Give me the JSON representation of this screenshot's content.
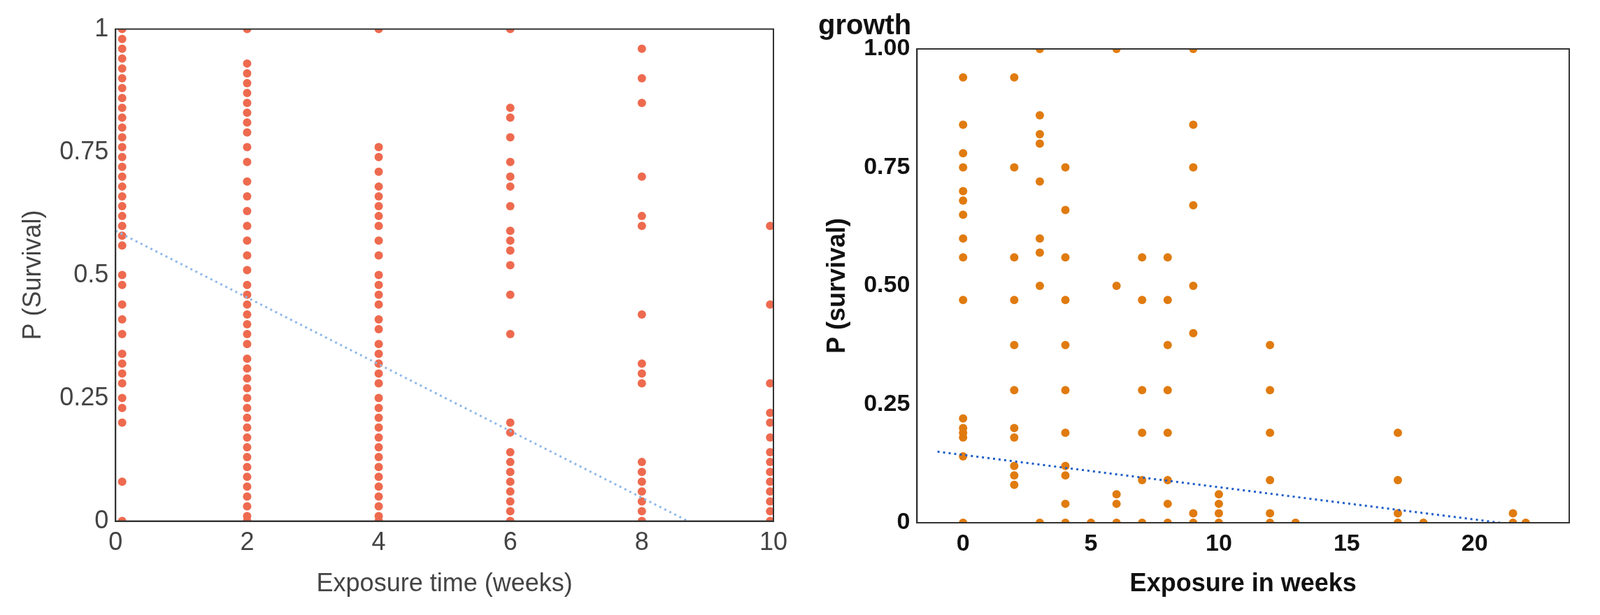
{
  "chart_data": [
    {
      "type": "scatter",
      "x_label": "Exposure time (weeks)",
      "y_label": "P (Survival)",
      "xlim": [
        0,
        10
      ],
      "xticks": [
        0,
        2,
        4,
        6,
        8,
        10
      ],
      "ylim": [
        0,
        1
      ],
      "yticks": [
        0,
        0.25,
        0.5,
        0.75,
        1
      ],
      "grid": false,
      "series": [
        {
          "type": "scatter",
          "color": "#ee6a4f",
          "marker": "circle",
          "x": [
            0.1,
            0.1,
            0.1,
            0.1,
            0.1,
            0.1,
            0.1,
            0.1,
            0.1,
            0.1,
            0.1,
            0.1,
            0.1,
            0.1,
            0.1,
            0.1,
            0.1,
            0.1,
            0.1,
            0.1,
            0.1,
            0.1,
            0.1,
            0.1,
            0.1,
            0.1,
            0.1,
            0.1,
            0.1,
            0.1,
            0.1,
            0.1,
            0.1,
            0.1,
            0.1,
            0.1,
            0.1,
            2,
            2,
            2,
            2,
            2,
            2,
            2,
            2,
            2,
            2,
            2,
            2,
            2,
            2,
            2,
            2,
            2,
            2,
            2,
            2,
            2,
            2,
            2,
            2,
            2,
            2,
            2,
            2,
            2,
            2,
            2,
            2,
            2,
            2,
            2,
            2,
            2,
            2,
            2,
            2,
            2,
            2,
            2,
            4,
            4,
            4,
            4,
            4,
            4,
            4,
            4,
            4,
            4,
            4,
            4,
            4,
            4,
            4,
            4,
            4,
            4,
            4,
            4,
            4,
            4,
            4,
            4,
            4,
            4,
            4,
            4,
            4,
            4,
            4,
            4,
            4,
            4,
            4,
            4,
            6,
            6,
            6,
            6,
            6,
            6,
            6,
            6,
            6,
            6,
            6,
            6,
            6,
            6,
            6,
            6,
            6,
            6,
            6,
            6,
            6,
            6,
            6,
            6,
            8,
            8,
            8,
            8,
            8,
            8,
            8,
            8,
            8,
            8,
            8,
            8,
            8,
            8,
            8,
            8,
            8,
            9.95,
            9.95,
            9.95,
            9.95,
            9.95,
            9.95,
            9.95,
            9.95,
            9.95,
            9.95,
            9.95,
            9.95,
            9.95,
            9.95
          ],
          "values": [
            1,
            0.98,
            0.96,
            0.94,
            0.92,
            0.9,
            0.88,
            0.86,
            0.84,
            0.82,
            0.8,
            0.78,
            0.76,
            0.74,
            0.72,
            0.7,
            0.68,
            0.66,
            0.64,
            0.62,
            0.6,
            0.58,
            0.56,
            0.5,
            0.48,
            0.44,
            0.41,
            0.38,
            0.34,
            0.32,
            0.3,
            0.28,
            0.25,
            0.23,
            0.2,
            0.08,
            0,
            1,
            0.93,
            0.91,
            0.89,
            0.87,
            0.85,
            0.83,
            0.81,
            0.79,
            0.76,
            0.73,
            0.69,
            0.66,
            0.63,
            0.6,
            0.57,
            0.54,
            0.51,
            0.48,
            0.46,
            0.44,
            0.42,
            0.4,
            0.38,
            0.36,
            0.33,
            0.31,
            0.29,
            0.27,
            0.25,
            0.23,
            0.21,
            0.19,
            0.17,
            0.15,
            0.13,
            0.11,
            0.09,
            0.07,
            0.05,
            0.03,
            0.01,
            0,
            1,
            0.76,
            0.74,
            0.71,
            0.68,
            0.66,
            0.64,
            0.62,
            0.6,
            0.57,
            0.54,
            0.5,
            0.48,
            0.46,
            0.44,
            0.41,
            0.39,
            0.36,
            0.34,
            0.32,
            0.3,
            0.28,
            0.25,
            0.23,
            0.21,
            0.19,
            0.17,
            0.15,
            0.13,
            0.11,
            0.09,
            0.07,
            0.05,
            0.03,
            0.01,
            0,
            1,
            0.84,
            0.82,
            0.78,
            0.73,
            0.7,
            0.68,
            0.64,
            0.59,
            0.57,
            0.55,
            0.52,
            0.46,
            0.38,
            0.2,
            0.18,
            0.14,
            0.12,
            0.1,
            0.08,
            0.06,
            0.04,
            0.02,
            0,
            0.96,
            0.9,
            0.85,
            0.7,
            0.62,
            0.6,
            0.42,
            0.32,
            0.3,
            0.28,
            0.12,
            0.1,
            0.08,
            0.06,
            0.04,
            0.02,
            0,
            0.6,
            0.44,
            0.28,
            0.22,
            0.2,
            0.17,
            0.14,
            0.12,
            0.1,
            0.08,
            0.06,
            0.04,
            0.02,
            0
          ]
        },
        {
          "type": "line",
          "color": "#8fb8e8",
          "line_style": "dotted",
          "x": [
            0,
            8.7
          ],
          "values": [
            0.59,
            0
          ]
        }
      ]
    },
    {
      "type": "scatter",
      "title": "growth",
      "x_label": "Exposure in weeks",
      "y_label": "P (survival)",
      "xlim": [
        -1.8,
        23.7
      ],
      "xticks": [
        0,
        5,
        10,
        15,
        20
      ],
      "ylim": [
        0,
        1
      ],
      "yticks": [
        0,
        0.25,
        {
          "value": 0.5,
          "label": "0.50"
        },
        0.75,
        {
          "value": 1,
          "label": "1.00"
        }
      ],
      "grid": false,
      "series": [
        {
          "type": "scatter",
          "color": "#e07b10",
          "marker": "circle",
          "x": [
            0,
            0,
            0,
            0,
            0,
            0,
            0,
            0,
            0,
            0,
            0,
            0,
            0,
            0,
            0,
            0,
            2,
            2,
            2,
            2,
            2,
            2,
            2,
            2,
            2,
            2,
            2,
            3,
            3,
            3,
            3,
            3,
            3,
            3,
            3,
            3,
            4,
            4,
            4,
            4,
            4,
            4,
            4,
            4,
            4,
            4,
            4,
            5,
            6,
            6,
            6,
            6,
            6,
            7,
            7,
            7,
            7,
            7,
            7,
            8,
            8,
            8,
            8,
            8,
            8,
            8,
            8,
            9,
            9,
            9,
            9,
            9,
            9,
            9,
            9,
            10,
            10,
            10,
            10,
            12,
            12,
            12,
            12,
            12,
            12,
            13,
            17,
            17,
            17,
            17,
            18,
            21.5,
            21.5,
            22
          ],
          "values": [
            0.94,
            0.84,
            0.78,
            0.75,
            0.7,
            0.68,
            0.65,
            0.6,
            0.56,
            0.47,
            0.22,
            0.2,
            0.19,
            0.18,
            0.14,
            0,
            0.94,
            0.75,
            0.56,
            0.47,
            0.375,
            0.28,
            0.2,
            0.18,
            0.12,
            0.1,
            0.08,
            1,
            0.86,
            0.82,
            0.8,
            0.72,
            0.6,
            0.57,
            0.5,
            0,
            0.75,
            0.66,
            0.56,
            0.47,
            0.375,
            0.28,
            0.19,
            0.12,
            0.1,
            0.04,
            0,
            0,
            1,
            0.5,
            0.06,
            0.04,
            0,
            0.56,
            0.47,
            0.28,
            0.19,
            0.09,
            0,
            0.56,
            0.47,
            0.375,
            0.28,
            0.19,
            0.09,
            0.04,
            0,
            1,
            0.84,
            0.75,
            0.67,
            0.5,
            0.4,
            0.02,
            0,
            0.06,
            0.04,
            0.02,
            0,
            0.375,
            0.28,
            0.19,
            0.09,
            0.02,
            0,
            0,
            0.19,
            0.09,
            0.02,
            0,
            0,
            0.02,
            0,
            0
          ]
        },
        {
          "type": "line",
          "color": "#1f5fc8",
          "line_style": "dotted",
          "x": [
            -1,
            21
          ],
          "values": [
            0.15,
            0
          ]
        }
      ]
    }
  ]
}
